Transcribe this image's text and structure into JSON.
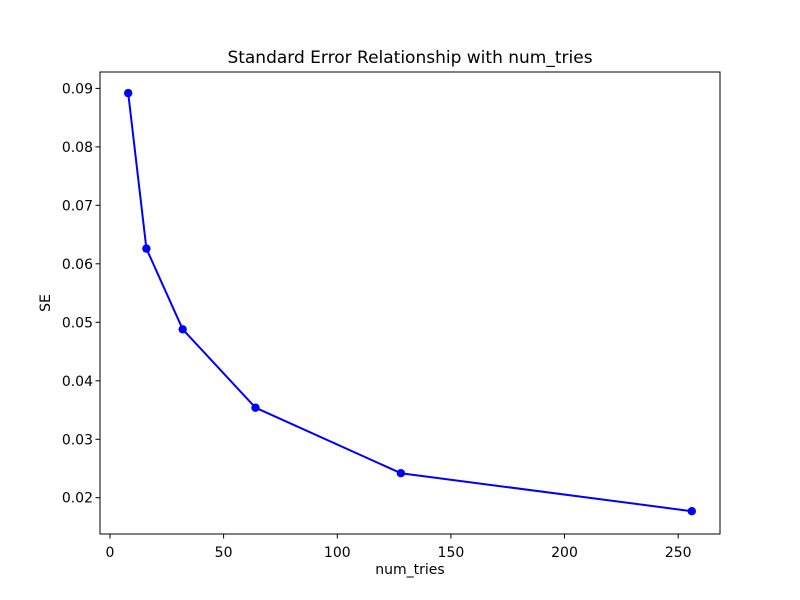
{
  "chart_data": {
    "type": "line",
    "title": "Standard Error Relationship with num_tries",
    "xlabel": "num_tries",
    "ylabel": "SE",
    "x": [
      8,
      16,
      32,
      64,
      128,
      256
    ],
    "y": [
      0.0892,
      0.0626,
      0.0488,
      0.0354,
      0.0242,
      0.0177
    ],
    "series": [
      {
        "name": "SE",
        "x": [
          8,
          16,
          32,
          64,
          128,
          256
        ],
        "values": [
          0.0892,
          0.0626,
          0.0488,
          0.0354,
          0.0242,
          0.0177
        ]
      }
    ],
    "xlim": [
      -4.4,
      268.4
    ],
    "ylim": [
      0.0138,
      0.0928
    ],
    "xticks": [
      0,
      50,
      100,
      150,
      200,
      250
    ],
    "xtick_labels": [
      "0",
      "50",
      "100",
      "150",
      "200",
      "250"
    ],
    "yticks": [
      0.02,
      0.03,
      0.04,
      0.05,
      0.06,
      0.07,
      0.08,
      0.09
    ],
    "ytick_labels": [
      "0.02",
      "0.03",
      "0.04",
      "0.05",
      "0.06",
      "0.07",
      "0.08",
      "0.09"
    ],
    "grid": false,
    "legend": null,
    "line_color": "#0000ff",
    "marker": "circle",
    "marker_radius": 4.2,
    "line_width": 2,
    "axes_color": "#000000",
    "background_color": "#ffffff"
  }
}
